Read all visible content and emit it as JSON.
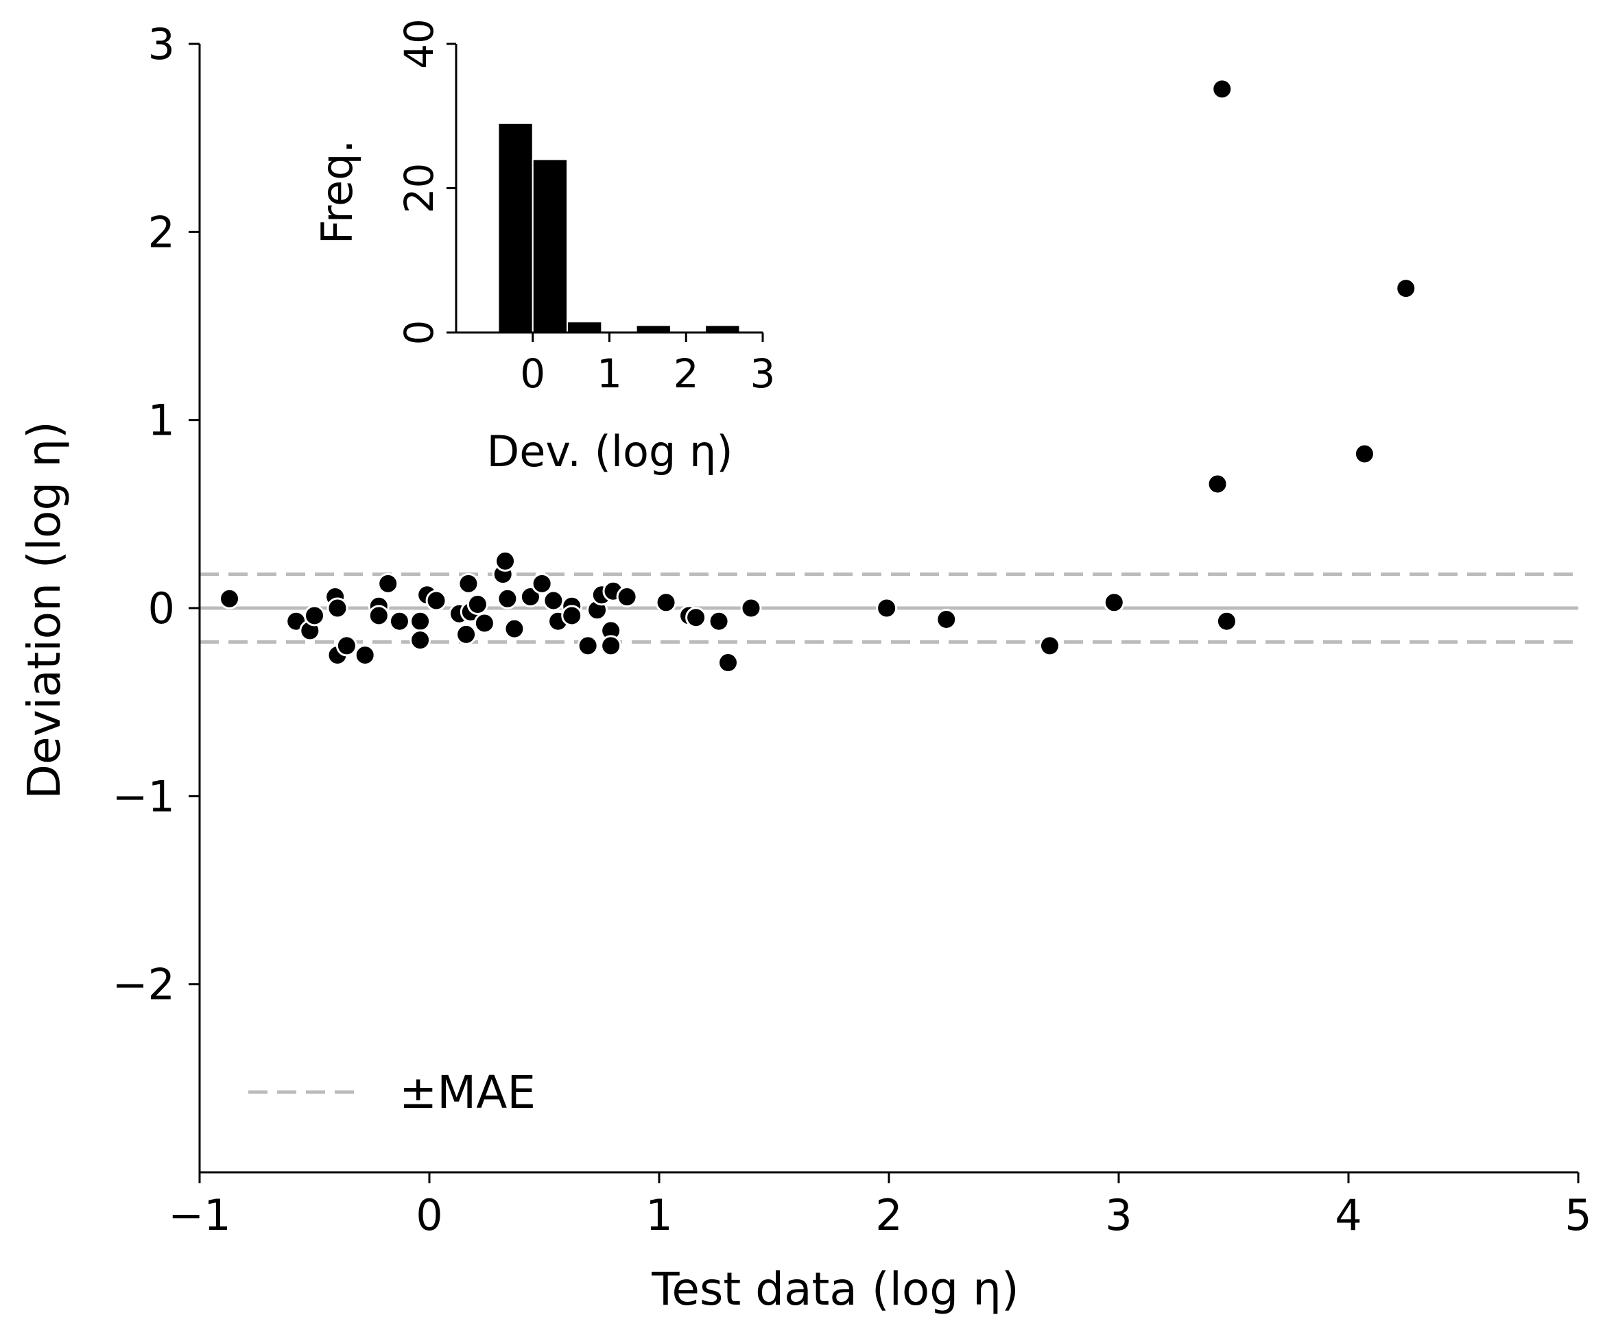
{
  "colors": {
    "point": "#000000",
    "point_edge": "#ffffff",
    "reference_line": "#bbbbbb",
    "bar": "#000000"
  },
  "chart_data": [
    {
      "type": "scatter",
      "title": "",
      "xlabel": "Test data (log η)",
      "ylabel": "Deviation (log η)",
      "xlim": [
        -1,
        5
      ],
      "ylim": [
        -3,
        3
      ],
      "xticks": [
        -1,
        0,
        1,
        2,
        3,
        4,
        5
      ],
      "xtick_labels": [
        "−1",
        "0",
        "1",
        "2",
        "3",
        "4",
        "5"
      ],
      "yticks": [
        -2,
        -1,
        0,
        1,
        2,
        3
      ],
      "ytick_labels": [
        "−2",
        "−1",
        "0",
        "1",
        "2",
        "3"
      ],
      "reference_lines": [
        {
          "y": 0,
          "style": "solid"
        },
        {
          "y": 0.18,
          "style": "dashed"
        },
        {
          "y": -0.18,
          "style": "dashed"
        }
      ],
      "legend": {
        "label": "±MAE",
        "position": "lower-left"
      },
      "points": [
        {
          "x": -0.87,
          "y": 0.05
        },
        {
          "x": -0.58,
          "y": -0.07
        },
        {
          "x": -0.52,
          "y": -0.12
        },
        {
          "x": -0.5,
          "y": -0.04
        },
        {
          "x": -0.41,
          "y": 0.06
        },
        {
          "x": -0.4,
          "y": 0.0
        },
        {
          "x": -0.4,
          "y": -0.25
        },
        {
          "x": -0.36,
          "y": -0.2
        },
        {
          "x": -0.28,
          "y": -0.25
        },
        {
          "x": -0.22,
          "y": 0.01
        },
        {
          "x": -0.22,
          "y": -0.04
        },
        {
          "x": -0.18,
          "y": 0.13
        },
        {
          "x": -0.13,
          "y": -0.07
        },
        {
          "x": -0.04,
          "y": -0.07
        },
        {
          "x": -0.04,
          "y": -0.17
        },
        {
          "x": -0.01,
          "y": 0.07
        },
        {
          "x": 0.03,
          "y": 0.04
        },
        {
          "x": 0.13,
          "y": -0.03
        },
        {
          "x": 0.16,
          "y": -0.14
        },
        {
          "x": 0.17,
          "y": 0.13
        },
        {
          "x": 0.18,
          "y": -0.02
        },
        {
          "x": 0.21,
          "y": 0.02
        },
        {
          "x": 0.24,
          "y": -0.08
        },
        {
          "x": 0.32,
          "y": 0.18
        },
        {
          "x": 0.33,
          "y": 0.25
        },
        {
          "x": 0.34,
          "y": 0.05
        },
        {
          "x": 0.37,
          "y": -0.11
        },
        {
          "x": 0.44,
          "y": 0.06
        },
        {
          "x": 0.49,
          "y": 0.13
        },
        {
          "x": 0.54,
          "y": 0.04
        },
        {
          "x": 0.56,
          "y": -0.07
        },
        {
          "x": 0.62,
          "y": 0.01
        },
        {
          "x": 0.62,
          "y": -0.04
        },
        {
          "x": 0.69,
          "y": -0.2
        },
        {
          "x": 0.73,
          "y": -0.01
        },
        {
          "x": 0.75,
          "y": 0.07
        },
        {
          "x": 0.79,
          "y": -0.12
        },
        {
          "x": 0.79,
          "y": -0.2
        },
        {
          "x": 0.8,
          "y": 0.09
        },
        {
          "x": 0.86,
          "y": 0.06
        },
        {
          "x": 1.03,
          "y": 0.03
        },
        {
          "x": 1.13,
          "y": -0.04
        },
        {
          "x": 1.16,
          "y": -0.05
        },
        {
          "x": 1.26,
          "y": -0.07
        },
        {
          "x": 1.3,
          "y": -0.29
        },
        {
          "x": 1.4,
          "y": 0.0
        },
        {
          "x": 1.99,
          "y": 0.0
        },
        {
          "x": 2.25,
          "y": -0.06
        },
        {
          "x": 2.7,
          "y": -0.2
        },
        {
          "x": 2.98,
          "y": 0.03
        },
        {
          "x": 3.43,
          "y": 0.66
        },
        {
          "x": 3.45,
          "y": 2.76
        },
        {
          "x": 3.47,
          "y": -0.07
        },
        {
          "x": 4.07,
          "y": 0.82
        },
        {
          "x": 4.25,
          "y": 1.7
        }
      ]
    },
    {
      "type": "bar",
      "title": "",
      "xlabel": "Dev. (log η)",
      "ylabel": "Freq.",
      "xlim": [
        -1,
        3
      ],
      "ylim": [
        0,
        40
      ],
      "xticks": [
        0,
        1,
        2,
        3
      ],
      "xtick_labels": [
        "0",
        "1",
        "2",
        "3"
      ],
      "yticks": [
        0,
        20,
        40
      ],
      "ytick_labels": [
        "0",
        "20",
        "40"
      ],
      "bin_edges": [
        -0.45,
        0.0,
        0.45,
        0.9,
        1.35,
        1.8,
        2.25,
        2.7,
        3.15
      ],
      "values": [
        29,
        24,
        1.5,
        0,
        1,
        0,
        1,
        0
      ]
    }
  ]
}
